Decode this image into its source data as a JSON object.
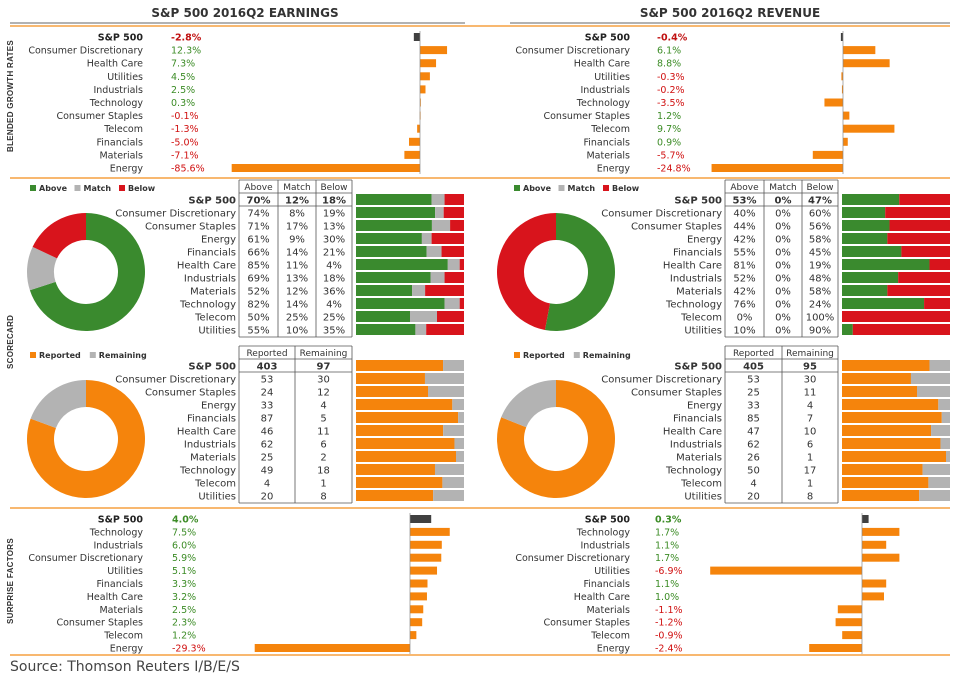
{
  "titles": {
    "earnings": "S&P 500 2016Q2 EARNINGS",
    "revenue": "S&P 500 2016Q2 REVENUE"
  },
  "side_labels": {
    "growth": "BLENDED GROWTH RATES",
    "scorecard": "SCORECARD",
    "surprise": "SURPRISE FACTORS"
  },
  "source": "Source: Thomson Reuters I/B/E/S",
  "colors": {
    "orange": "#f5840c",
    "dark_bar": "#404040",
    "green_text": "#3c8c26",
    "red_text": "#d01010",
    "above": "#3a8a2e",
    "match": "#b3b3b3",
    "below": "#d8141c",
    "remaining": "#b3b3b3"
  },
  "chart_data": [
    {
      "id": "earnings_growth",
      "type": "bar",
      "orientation": "horizontal",
      "categories": [
        "S&P 500",
        "Consumer Discretionary",
        "Health Care",
        "Utilities",
        "Industrials",
        "Technology",
        "Consumer Staples",
        "Telecom",
        "Financials",
        "Materials",
        "Energy"
      ],
      "value_labels": [
        "-2.8%",
        "12.3%",
        "7.3%",
        "4.5%",
        "2.5%",
        "0.3%",
        "-0.1%",
        "-1.3%",
        "-5.0%",
        "-7.1%",
        "-85.6%"
      ],
      "values": [
        -2.8,
        12.3,
        7.3,
        4.5,
        2.5,
        0.3,
        -0.1,
        -1.3,
        -5.0,
        -7.1,
        -85.6
      ]
    },
    {
      "id": "revenue_growth",
      "type": "bar",
      "orientation": "horizontal",
      "categories": [
        "S&P 500",
        "Consumer Discretionary",
        "Health Care",
        "Utilities",
        "Industrials",
        "Technology",
        "Consumer Staples",
        "Telecom",
        "Financials",
        "Materials",
        "Energy"
      ],
      "value_labels": [
        "-0.4%",
        "6.1%",
        "8.8%",
        "-0.3%",
        "-0.2%",
        "-3.5%",
        "1.2%",
        "9.7%",
        "0.9%",
        "-5.7%",
        "-24.8%"
      ],
      "values": [
        -0.4,
        6.1,
        8.8,
        -0.3,
        -0.2,
        -3.5,
        1.2,
        9.7,
        0.9,
        -5.7,
        -24.8
      ]
    },
    {
      "id": "earnings_scorecard",
      "type": "table",
      "legend": [
        "Above",
        "Match",
        "Below"
      ],
      "headers": [
        "Above",
        "Match",
        "Below"
      ],
      "rows": [
        {
          "label": "S&P 500",
          "values": [
            "70%",
            "12%",
            "18%"
          ],
          "data": [
            70,
            12,
            18
          ]
        },
        {
          "label": "Consumer Discretionary",
          "values": [
            "74%",
            "8%",
            "19%"
          ],
          "data": [
            74,
            8,
            19
          ]
        },
        {
          "label": "Consumer Staples",
          "values": [
            "71%",
            "17%",
            "13%"
          ],
          "data": [
            71,
            17,
            13
          ]
        },
        {
          "label": "Energy",
          "values": [
            "61%",
            "9%",
            "30%"
          ],
          "data": [
            61,
            9,
            30
          ]
        },
        {
          "label": "Financials",
          "values": [
            "66%",
            "14%",
            "21%"
          ],
          "data": [
            66,
            14,
            21
          ]
        },
        {
          "label": "Health Care",
          "values": [
            "85%",
            "11%",
            "4%"
          ],
          "data": [
            85,
            11,
            4
          ]
        },
        {
          "label": "Industrials",
          "values": [
            "69%",
            "13%",
            "18%"
          ],
          "data": [
            69,
            13,
            18
          ]
        },
        {
          "label": "Materials",
          "values": [
            "52%",
            "12%",
            "36%"
          ],
          "data": [
            52,
            12,
            36
          ]
        },
        {
          "label": "Technology",
          "values": [
            "82%",
            "14%",
            "4%"
          ],
          "data": [
            82,
            14,
            4
          ]
        },
        {
          "label": "Telecom",
          "values": [
            "50%",
            "25%",
            "25%"
          ],
          "data": [
            50,
            25,
            25
          ]
        },
        {
          "label": "Utilities",
          "values": [
            "55%",
            "10%",
            "35%"
          ],
          "data": [
            55,
            10,
            35
          ]
        }
      ]
    },
    {
      "id": "revenue_scorecard",
      "type": "table",
      "legend": [
        "Above",
        "Match",
        "Below"
      ],
      "headers": [
        "Above",
        "Match",
        "Below"
      ],
      "rows": [
        {
          "label": "S&P 500",
          "values": [
            "53%",
            "0%",
            "47%"
          ],
          "data": [
            53,
            0,
            47
          ]
        },
        {
          "label": "Consumer Discretionary",
          "values": [
            "40%",
            "0%",
            "60%"
          ],
          "data": [
            40,
            0,
            60
          ]
        },
        {
          "label": "Consumer Staples",
          "values": [
            "44%",
            "0%",
            "56%"
          ],
          "data": [
            44,
            0,
            56
          ]
        },
        {
          "label": "Energy",
          "values": [
            "42%",
            "0%",
            "58%"
          ],
          "data": [
            42,
            0,
            58
          ]
        },
        {
          "label": "Financials",
          "values": [
            "55%",
            "0%",
            "45%"
          ],
          "data": [
            55,
            0,
            45
          ]
        },
        {
          "label": "Health Care",
          "values": [
            "81%",
            "0%",
            "19%"
          ],
          "data": [
            81,
            0,
            19
          ]
        },
        {
          "label": "Industrials",
          "values": [
            "52%",
            "0%",
            "48%"
          ],
          "data": [
            52,
            0,
            48
          ]
        },
        {
          "label": "Materials",
          "values": [
            "42%",
            "0%",
            "58%"
          ],
          "data": [
            42,
            0,
            58
          ]
        },
        {
          "label": "Technology",
          "values": [
            "76%",
            "0%",
            "24%"
          ],
          "data": [
            76,
            0,
            24
          ]
        },
        {
          "label": "Telecom",
          "values": [
            "0%",
            "0%",
            "100%"
          ],
          "data": [
            0,
            0,
            100
          ]
        },
        {
          "label": "Utilities",
          "values": [
            "10%",
            "0%",
            "90%"
          ],
          "data": [
            10,
            0,
            90
          ]
        }
      ]
    },
    {
      "id": "earnings_reported",
      "type": "table",
      "legend": [
        "Reported",
        "Remaining"
      ],
      "headers": [
        "Reported",
        "Remaining"
      ],
      "rows": [
        {
          "label": "S&P 500",
          "values": [
            "403",
            "97"
          ],
          "data": [
            403,
            97
          ]
        },
        {
          "label": "Consumer Discretionary",
          "values": [
            "53",
            "30"
          ],
          "data": [
            53,
            30
          ]
        },
        {
          "label": "Consumer Staples",
          "values": [
            "24",
            "12"
          ],
          "data": [
            24,
            12
          ]
        },
        {
          "label": "Energy",
          "values": [
            "33",
            "4"
          ],
          "data": [
            33,
            4
          ]
        },
        {
          "label": "Financials",
          "values": [
            "87",
            "5"
          ],
          "data": [
            87,
            5
          ]
        },
        {
          "label": "Health Care",
          "values": [
            "46",
            "11"
          ],
          "data": [
            46,
            11
          ]
        },
        {
          "label": "Industrials",
          "values": [
            "62",
            "6"
          ],
          "data": [
            62,
            6
          ]
        },
        {
          "label": "Materials",
          "values": [
            "25",
            "2"
          ],
          "data": [
            25,
            2
          ]
        },
        {
          "label": "Technology",
          "values": [
            "49",
            "18"
          ],
          "data": [
            49,
            18
          ]
        },
        {
          "label": "Telecom",
          "values": [
            "4",
            "1"
          ],
          "data": [
            4,
            1
          ]
        },
        {
          "label": "Utilities",
          "values": [
            "20",
            "8"
          ],
          "data": [
            20,
            8
          ]
        }
      ]
    },
    {
      "id": "revenue_reported",
      "type": "table",
      "legend": [
        "Reported",
        "Remaining"
      ],
      "headers": [
        "Reported",
        "Remaining"
      ],
      "rows": [
        {
          "label": "S&P 500",
          "values": [
            "405",
            "95"
          ],
          "data": [
            405,
            95
          ]
        },
        {
          "label": "Consumer Discretionary",
          "values": [
            "53",
            "30"
          ],
          "data": [
            53,
            30
          ]
        },
        {
          "label": "Consumer Staples",
          "values": [
            "25",
            "11"
          ],
          "data": [
            25,
            11
          ]
        },
        {
          "label": "Energy",
          "values": [
            "33",
            "4"
          ],
          "data": [
            33,
            4
          ]
        },
        {
          "label": "Financials",
          "values": [
            "85",
            "7"
          ],
          "data": [
            85,
            7
          ]
        },
        {
          "label": "Health Care",
          "values": [
            "47",
            "10"
          ],
          "data": [
            47,
            10
          ]
        },
        {
          "label": "Industrials",
          "values": [
            "62",
            "6"
          ],
          "data": [
            62,
            6
          ]
        },
        {
          "label": "Materials",
          "values": [
            "26",
            "1"
          ],
          "data": [
            26,
            1
          ]
        },
        {
          "label": "Technology",
          "values": [
            "50",
            "17"
          ],
          "data": [
            50,
            17
          ]
        },
        {
          "label": "Telecom",
          "values": [
            "4",
            "1"
          ],
          "data": [
            4,
            1
          ]
        },
        {
          "label": "Utilities",
          "values": [
            "20",
            "8"
          ],
          "data": [
            20,
            8
          ]
        }
      ]
    },
    {
      "id": "earnings_surprise",
      "type": "bar",
      "orientation": "horizontal",
      "categories": [
        "S&P 500",
        "Technology",
        "Industrials",
        "Consumer Discretionary",
        "Utilities",
        "Financials",
        "Health Care",
        "Materials",
        "Consumer Staples",
        "Telecom",
        "Energy"
      ],
      "value_labels": [
        "4.0%",
        "7.5%",
        "6.0%",
        "5.9%",
        "5.1%",
        "3.3%",
        "3.2%",
        "2.5%",
        "2.3%",
        "1.2%",
        "-29.3%"
      ],
      "values": [
        4.0,
        7.5,
        6.0,
        5.9,
        5.1,
        3.3,
        3.2,
        2.5,
        2.3,
        1.2,
        -29.3
      ]
    },
    {
      "id": "revenue_surprise",
      "type": "bar",
      "orientation": "horizontal",
      "categories": [
        "S&P 500",
        "Technology",
        "Industrials",
        "Consumer Discretionary",
        "Utilities",
        "Financials",
        "Health Care",
        "Materials",
        "Consumer Staples",
        "Telecom",
        "Energy"
      ],
      "value_labels": [
        "0.3%",
        "1.7%",
        "1.1%",
        "1.7%",
        "-6.9%",
        "1.1%",
        "1.0%",
        "-1.1%",
        "-1.2%",
        "-0.9%",
        "-2.4%"
      ],
      "values": [
        0.3,
        1.7,
        1.1,
        1.7,
        -6.9,
        1.1,
        1.0,
        -1.1,
        -1.2,
        -0.9,
        -2.4
      ]
    }
  ]
}
